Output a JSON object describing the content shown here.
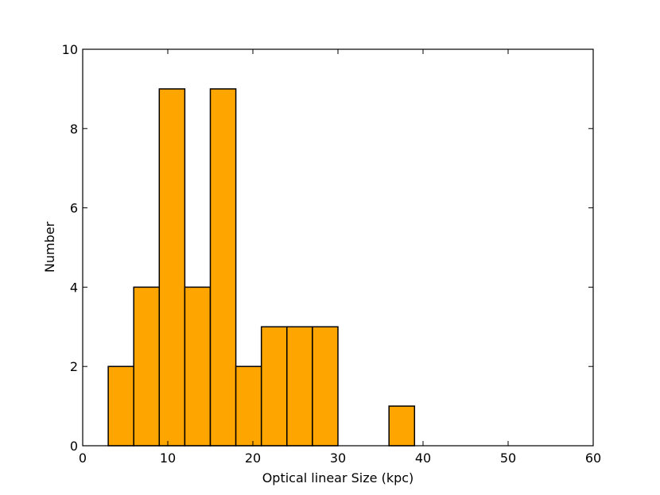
{
  "chart_data": {
    "type": "bar",
    "subtype": "histogram",
    "title": "",
    "xlabel": "Optical linear Size (kpc)",
    "ylabel": "Number",
    "xlim": [
      0,
      60
    ],
    "ylim": [
      0,
      10
    ],
    "xticks": [
      0,
      10,
      20,
      30,
      40,
      50,
      60
    ],
    "yticks": [
      0,
      2,
      4,
      6,
      8,
      10
    ],
    "xtick_labels": [
      "0",
      "10",
      "20",
      "30",
      "40",
      "50",
      "60"
    ],
    "ytick_labels": [
      "0",
      "2",
      "4",
      "6",
      "8",
      "10"
    ],
    "grid": false,
    "legend": null,
    "bar_color": "#FFA500",
    "edge_color": "#000000",
    "bins": [
      {
        "x0": 3,
        "x1": 6,
        "count": 2
      },
      {
        "x0": 6,
        "x1": 9,
        "count": 4
      },
      {
        "x0": 9,
        "x1": 12,
        "count": 9
      },
      {
        "x0": 12,
        "x1": 15,
        "count": 4
      },
      {
        "x0": 15,
        "x1": 18,
        "count": 9
      },
      {
        "x0": 18,
        "x1": 21,
        "count": 2
      },
      {
        "x0": 21,
        "x1": 24,
        "count": 3
      },
      {
        "x0": 24,
        "x1": 27,
        "count": 3
      },
      {
        "x0": 27,
        "x1": 30,
        "count": 3
      },
      {
        "x0": 36,
        "x1": 39,
        "count": 1
      }
    ]
  }
}
